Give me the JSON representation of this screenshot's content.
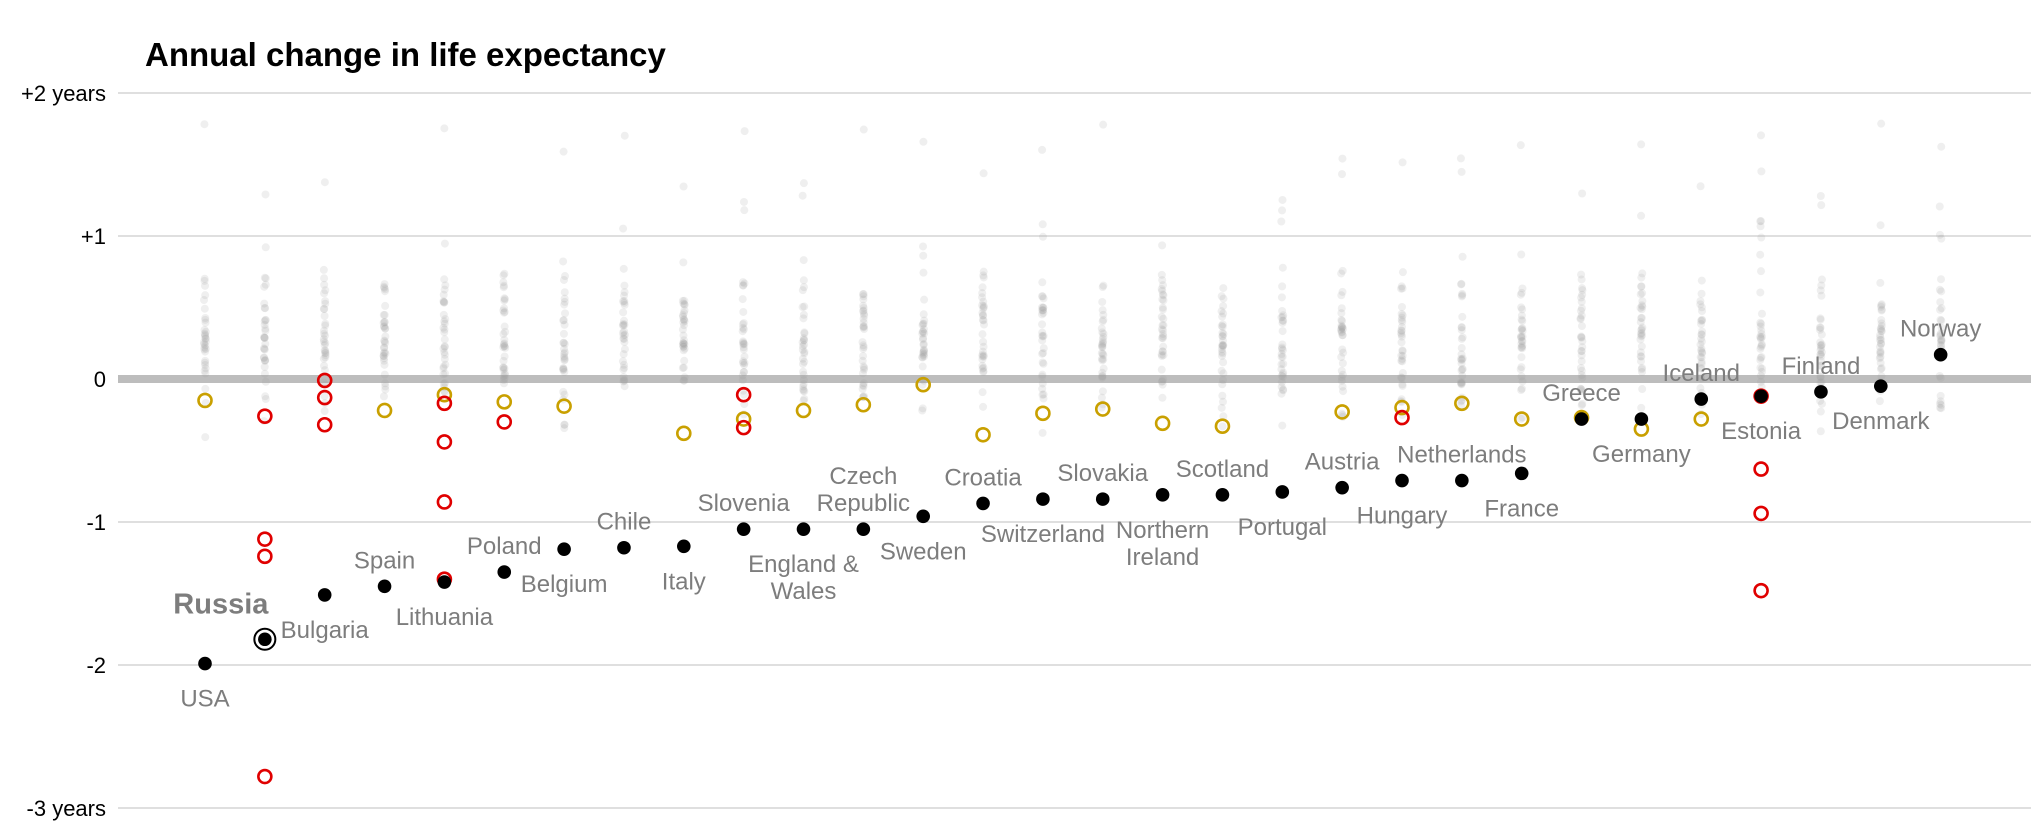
{
  "chart_data": {
    "type": "scatter",
    "title": "Annual change in life expectancy",
    "ylim": [
      -3,
      2
    ],
    "grid": true,
    "y_ticks": [
      {
        "value": 2,
        "label": "+2 years"
      },
      {
        "value": 1,
        "label": "+1"
      },
      {
        "value": 0,
        "label": "0"
      },
      {
        "value": -1,
        "label": "-1"
      },
      {
        "value": -2,
        "label": "-2"
      },
      {
        "value": -3,
        "label": "-3 years"
      }
    ],
    "categories": [
      "USA",
      "Russia",
      "Bulgaria",
      "Spain",
      "Lithuania",
      "Poland",
      "Belgium",
      "Chile",
      "Italy",
      "Slovenia",
      "England & Wales",
      "Czech Republic",
      "Sweden",
      "Croatia",
      "Switzerland",
      "Slovakia",
      "Northern Ireland",
      "Scotland",
      "Portugal",
      "Austria",
      "Hungary",
      "Netherlands",
      "France",
      "Greece",
      "Germany",
      "Iceland",
      "Estonia",
      "Finland",
      "Denmark",
      "Norway"
    ],
    "highlight": "Russia",
    "series": [
      {
        "type": "latest",
        "color": "#000000",
        "values": [
          -1.99,
          -1.82,
          -1.51,
          -1.45,
          -1.42,
          -1.35,
          -1.19,
          -1.18,
          -1.17,
          -1.05,
          -1.05,
          -1.05,
          -0.96,
          -0.87,
          -0.84,
          -0.84,
          -0.81,
          -0.81,
          -0.79,
          -0.76,
          -0.71,
          -0.71,
          -0.66,
          -0.28,
          -0.28,
          -0.14,
          -0.12,
          -0.09,
          -0.05,
          0.17
        ]
      },
      {
        "type": "comparable-drop",
        "color": "#c9a000",
        "points": [
          [
            0,
            -0.15
          ],
          [
            3,
            -0.22
          ],
          [
            4,
            -0.11
          ],
          [
            5,
            -0.16
          ],
          [
            6,
            -0.19
          ],
          [
            8,
            -0.38
          ],
          [
            9,
            -0.28
          ],
          [
            10,
            -0.22
          ],
          [
            11,
            -0.18
          ],
          [
            12,
            -0.04
          ],
          [
            13,
            -0.39
          ],
          [
            14,
            -0.24
          ],
          [
            15,
            -0.21
          ],
          [
            16,
            -0.31
          ],
          [
            17,
            -0.33
          ],
          [
            19,
            -0.23
          ],
          [
            20,
            -0.2
          ],
          [
            21,
            -0.17
          ],
          [
            22,
            -0.28
          ],
          [
            23,
            -0.27
          ],
          [
            24,
            -0.35
          ],
          [
            25,
            -0.28
          ]
        ]
      },
      {
        "type": "larger-drop",
        "color": "#e00000",
        "points": [
          [
            1,
            -0.26
          ],
          [
            1,
            -1.12
          ],
          [
            1,
            -1.24
          ],
          [
            1,
            -2.78
          ],
          [
            2,
            -0.01
          ],
          [
            2,
            -0.13
          ],
          [
            2,
            -0.32
          ],
          [
            4,
            -0.17
          ],
          [
            4,
            -0.44
          ],
          [
            4,
            -0.86
          ],
          [
            4,
            -1.4
          ],
          [
            5,
            -0.3
          ],
          [
            9,
            -0.11
          ],
          [
            9,
            -0.34
          ],
          [
            20,
            -0.27
          ],
          [
            26,
            -0.12
          ],
          [
            26,
            -0.63
          ],
          [
            26,
            -0.94
          ],
          [
            26,
            -1.48
          ]
        ]
      }
    ]
  }
}
